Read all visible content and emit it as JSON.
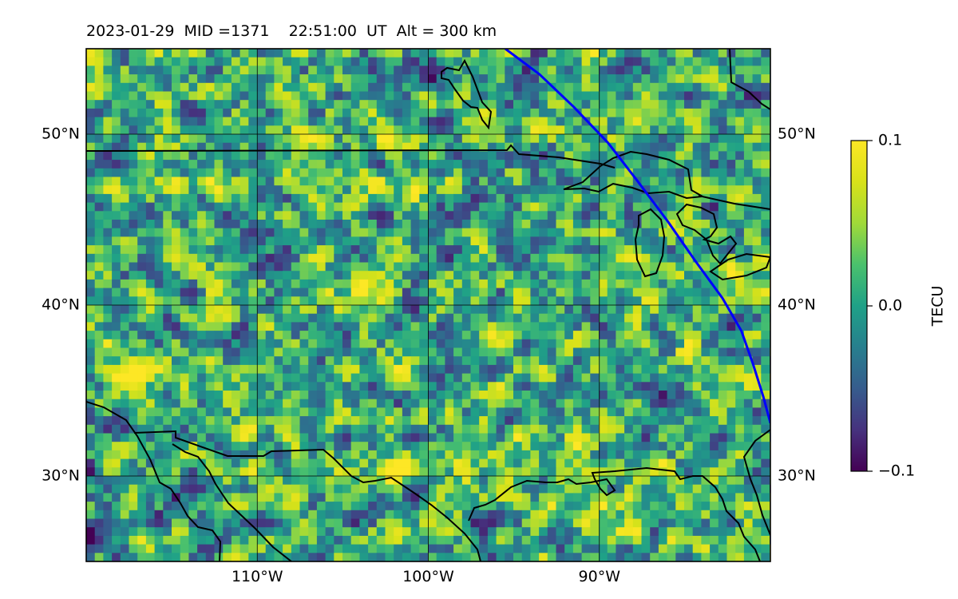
{
  "header": {
    "date": "2023-01-29",
    "mid": "MID =1371",
    "time": "22:51:00  UT",
    "alt": "Alt = 300 km"
  },
  "chart_data": {
    "type": "heatmap",
    "title": "2023-01-29  MID =1371    22:51:00  UT  Alt = 300 km",
    "map_extent": {
      "lon": [
        -120,
        -80
      ],
      "lat": [
        25,
        55
      ]
    },
    "lon_ticks": [
      {
        "value": -110,
        "label": "110°W"
      },
      {
        "value": -100,
        "label": "100°W"
      },
      {
        "value": -90,
        "label": "90°W"
      }
    ],
    "lat_ticks": [
      {
        "value": 50,
        "label": "50°N"
      },
      {
        "value": 40,
        "label": "40°N"
      },
      {
        "value": 30,
        "label": "30°N"
      }
    ],
    "grid": true,
    "colorbar": {
      "label": "TECU",
      "colormap": "viridis",
      "range": [
        -0.1,
        0.1
      ],
      "ticks": [
        {
          "value": 0.1,
          "label": "0.1"
        },
        {
          "value": 0.0,
          "label": "0.0"
        },
        {
          "value": -0.1,
          "label": "−0.1"
        }
      ]
    },
    "field_summary": {
      "mean": 0.0,
      "typical_range": [
        -0.08,
        0.1
      ]
    },
    "track": {
      "color": "#0000ff",
      "points": [
        [
          -95.5,
          55
        ],
        [
          -93.5,
          53.5
        ],
        [
          -91.5,
          51.6
        ],
        [
          -89.5,
          49.5
        ],
        [
          -87.8,
          47.3
        ],
        [
          -86.0,
          44.9
        ],
        [
          -84.4,
          42.6
        ],
        [
          -82.8,
          40.4
        ],
        [
          -81.7,
          38.5
        ],
        [
          -81.0,
          36.5
        ],
        [
          -80.4,
          34.6
        ],
        [
          -80.0,
          33.1
        ]
      ]
    },
    "colors": {
      "track": "#0000ff",
      "coast": "#000000",
      "grid": "#000000"
    }
  }
}
